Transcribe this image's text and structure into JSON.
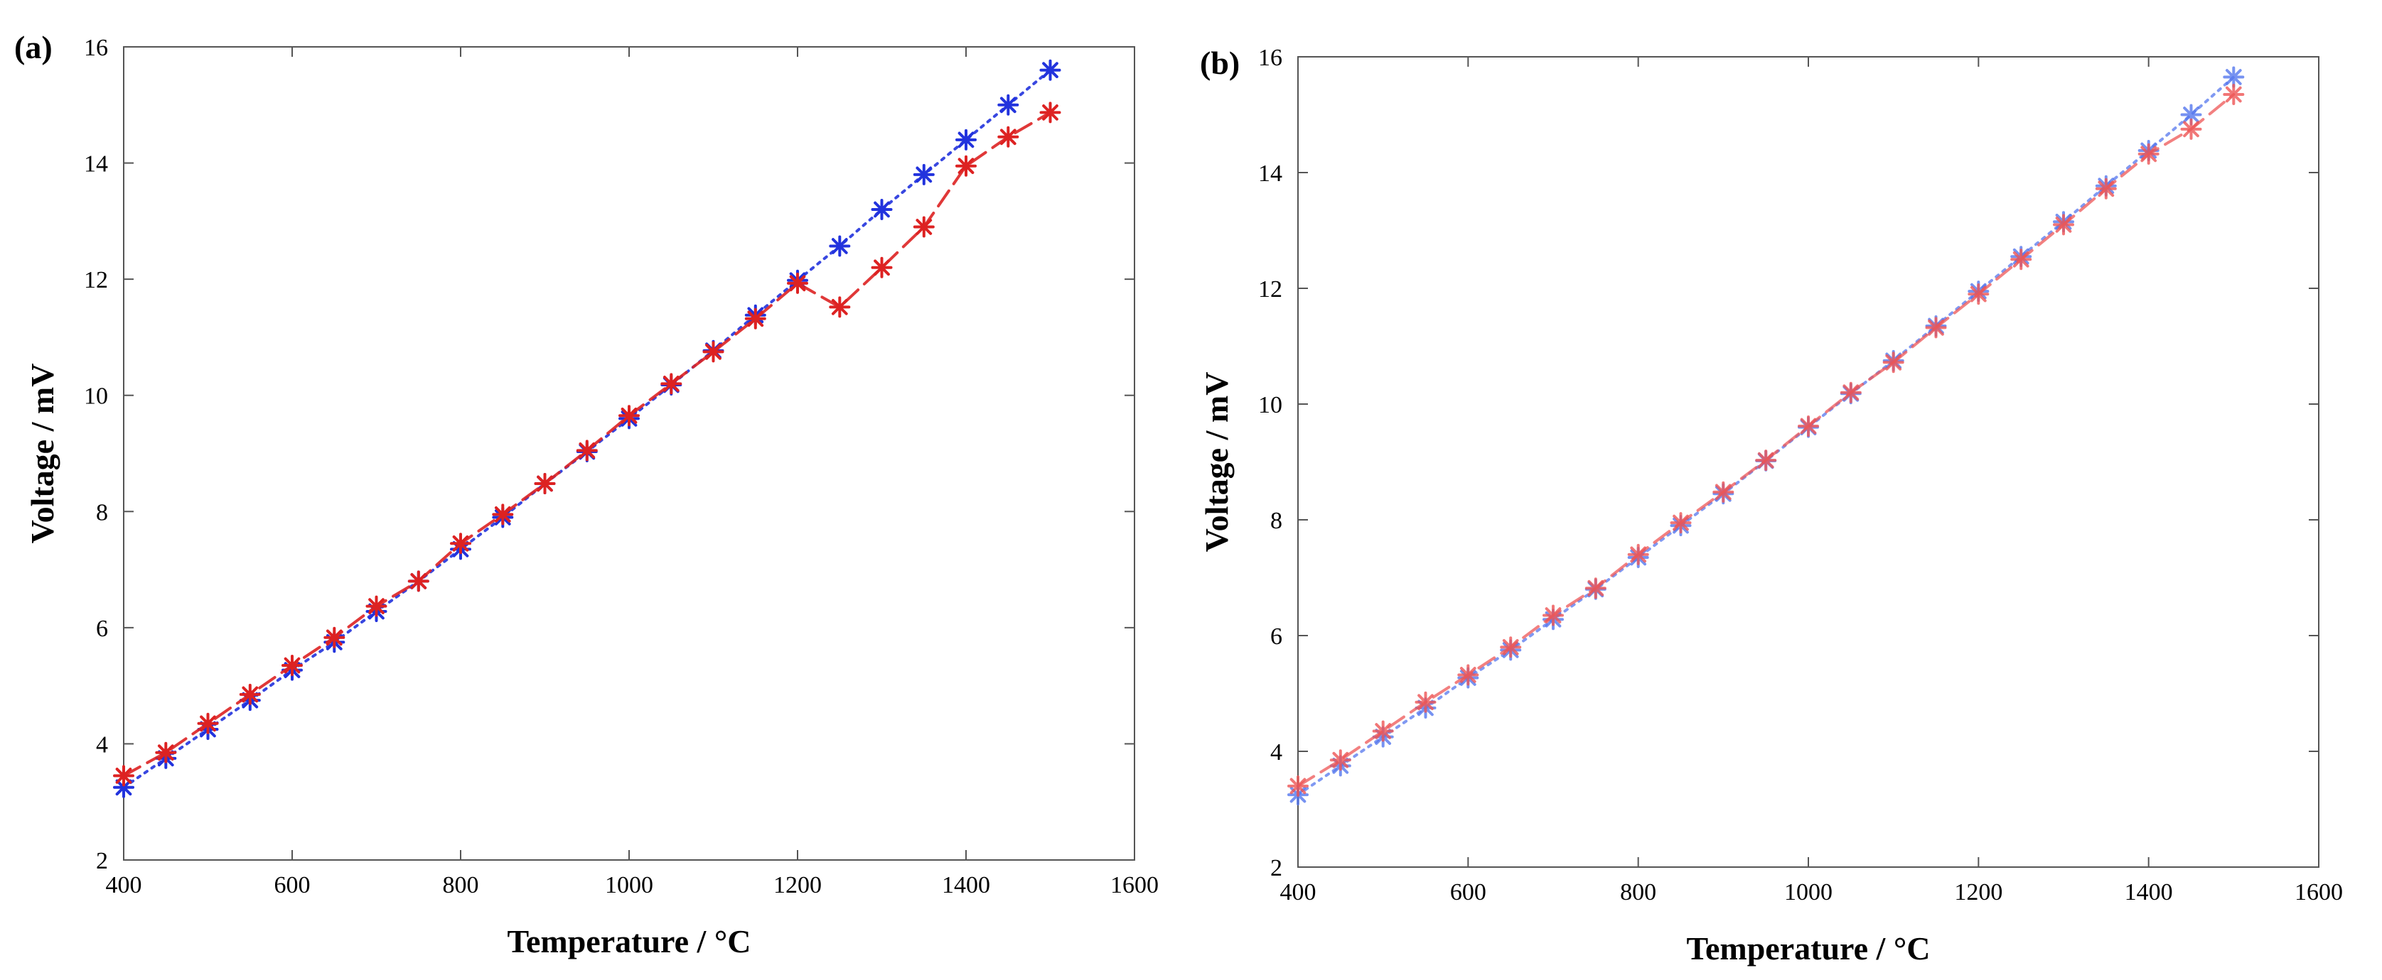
{
  "chart_data": [
    {
      "type": "line",
      "panel_label": "(a)",
      "title": "",
      "xlabel": "Temperature  / °C",
      "ylabel": "Voltage / mV",
      "xlim": [
        400,
        1600
      ],
      "ylim": [
        2,
        16
      ],
      "xticks": [
        "400",
        "600",
        "800",
        "1000",
        "1200",
        "1400",
        "1600"
      ],
      "yticks": [
        "2",
        "4",
        "6",
        "8",
        "10",
        "12",
        "14",
        "16"
      ],
      "grid": false,
      "legend": "none",
      "x": [
        400,
        450,
        500,
        550,
        600,
        650,
        700,
        750,
        800,
        850,
        900,
        950,
        1000,
        1050,
        1100,
        1150,
        1200,
        1250,
        1300,
        1350,
        1400,
        1450,
        1500
      ],
      "series": [
        {
          "name": "blue series",
          "color": "#2233dd",
          "line_style": "dotted",
          "marker": "asterisk",
          "values": [
            3.25,
            3.75,
            4.25,
            4.75,
            5.27,
            5.75,
            6.28,
            6.8,
            7.35,
            7.9,
            8.48,
            9.03,
            9.6,
            10.18,
            10.77,
            11.38,
            11.98,
            12.57,
            13.2,
            13.8,
            14.4,
            15.0,
            15.6
          ]
        },
        {
          "name": "red series",
          "color": "#dd2222",
          "line_style": "dashed",
          "marker": "asterisk",
          "values": [
            3.45,
            3.85,
            4.35,
            4.85,
            5.35,
            5.83,
            6.37,
            6.8,
            7.45,
            7.95,
            8.48,
            9.05,
            9.65,
            10.2,
            10.75,
            11.32,
            11.93,
            11.52,
            12.2,
            12.9,
            13.95,
            14.45,
            14.87
          ]
        }
      ]
    },
    {
      "type": "line",
      "panel_label": "(b)",
      "title": "",
      "xlabel": "Temperature  / °C",
      "ylabel": "Voltage / mV",
      "xlim": [
        400,
        1600
      ],
      "ylim": [
        2,
        16
      ],
      "xticks": [
        "400",
        "600",
        "800",
        "1000",
        "1200",
        "1400",
        "1600"
      ],
      "yticks": [
        "2",
        "4",
        "6",
        "8",
        "10",
        "12",
        "14",
        "16"
      ],
      "grid": false,
      "legend": "none",
      "x": [
        400,
        450,
        500,
        550,
        600,
        650,
        700,
        750,
        800,
        850,
        900,
        950,
        1000,
        1050,
        1100,
        1150,
        1200,
        1250,
        1300,
        1350,
        1400,
        1450,
        1500
      ],
      "series": [
        {
          "name": "blue series",
          "color": "#5577ee",
          "line_style": "dotted",
          "marker": "asterisk",
          "values": [
            3.25,
            3.75,
            4.25,
            4.75,
            5.27,
            5.75,
            6.28,
            6.8,
            7.35,
            7.9,
            8.45,
            9.02,
            9.6,
            10.18,
            10.75,
            11.35,
            11.95,
            12.55,
            13.15,
            13.77,
            14.38,
            15.0,
            15.65
          ]
        },
        {
          "name": "red series",
          "color": "#ee5555",
          "line_style": "dashed",
          "marker": "asterisk",
          "values": [
            3.4,
            3.85,
            4.35,
            4.85,
            5.32,
            5.8,
            6.35,
            6.82,
            7.4,
            7.95,
            8.48,
            9.03,
            9.62,
            10.2,
            10.72,
            11.32,
            11.9,
            12.5,
            13.1,
            13.72,
            14.32,
            14.75,
            15.35
          ]
        }
      ]
    }
  ]
}
